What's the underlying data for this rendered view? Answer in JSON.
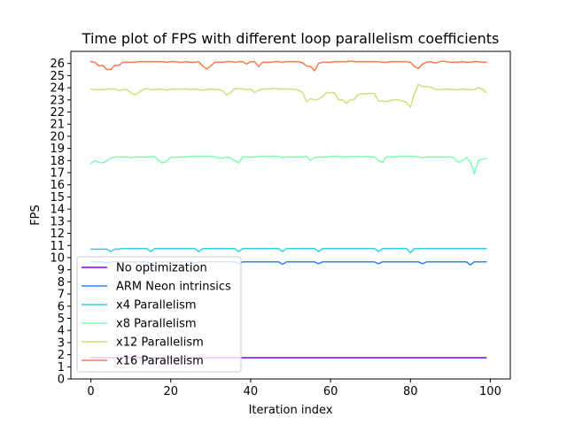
{
  "chart_data": {
    "type": "line",
    "title": "Time plot of FPS with different loop parallelism coefficients",
    "xlabel": "Iteration index",
    "ylabel": "FPS",
    "xlim": [
      -5,
      105
    ],
    "ylim": [
      0,
      27
    ],
    "x_ticks": [
      0,
      20,
      40,
      60,
      80,
      100
    ],
    "y_ticks": [
      0,
      1,
      2,
      3,
      4,
      5,
      6,
      7,
      8,
      9,
      10,
      11,
      12,
      13,
      14,
      15,
      16,
      17,
      18,
      19,
      20,
      21,
      22,
      23,
      24,
      25,
      26
    ],
    "grid": false,
    "legend_position": "lower-left",
    "x": [
      0,
      1,
      2,
      3,
      4,
      5,
      6,
      7,
      8,
      9,
      10,
      11,
      12,
      13,
      14,
      15,
      16,
      17,
      18,
      19,
      20,
      21,
      22,
      23,
      24,
      25,
      26,
      27,
      28,
      29,
      30,
      31,
      32,
      33,
      34,
      35,
      36,
      37,
      38,
      39,
      40,
      41,
      42,
      43,
      44,
      45,
      46,
      47,
      48,
      49,
      50,
      51,
      52,
      53,
      54,
      55,
      56,
      57,
      58,
      59,
      60,
      61,
      62,
      63,
      64,
      65,
      66,
      67,
      68,
      69,
      70,
      71,
      72,
      73,
      74,
      75,
      76,
      77,
      78,
      79,
      80,
      81,
      82,
      83,
      84,
      85,
      86,
      87,
      88,
      89,
      90,
      91,
      92,
      93,
      94,
      95,
      96,
      97,
      98,
      99
    ],
    "series": [
      {
        "name": "No optimization",
        "color": "#8000ff",
        "values": [
          1.75,
          1.75,
          1.75,
          1.75,
          1.75,
          1.75,
          1.75,
          1.75,
          1.75,
          1.75,
          1.75,
          1.75,
          1.75,
          1.75,
          1.75,
          1.75,
          1.75,
          1.75,
          1.75,
          1.75,
          1.75,
          1.75,
          1.75,
          1.75,
          1.75,
          1.75,
          1.75,
          1.75,
          1.75,
          1.75,
          1.75,
          1.75,
          1.75,
          1.75,
          1.75,
          1.75,
          1.75,
          1.75,
          1.75,
          1.75,
          1.75,
          1.75,
          1.75,
          1.75,
          1.75,
          1.75,
          1.75,
          1.75,
          1.75,
          1.75,
          1.75,
          1.75,
          1.75,
          1.75,
          1.75,
          1.75,
          1.75,
          1.75,
          1.75,
          1.75,
          1.75,
          1.75,
          1.75,
          1.75,
          1.75,
          1.75,
          1.75,
          1.75,
          1.75,
          1.75,
          1.75,
          1.75,
          1.75,
          1.75,
          1.75,
          1.75,
          1.75,
          1.75,
          1.75,
          1.75,
          1.75,
          1.75,
          1.75,
          1.75,
          1.75,
          1.75,
          1.75,
          1.75,
          1.75,
          1.75,
          1.75,
          1.75,
          1.75,
          1.75,
          1.75,
          1.75,
          1.75,
          1.75,
          1.75,
          1.75
        ]
      },
      {
        "name": "ARM Neon intrinsics",
        "color": "#3080f0",
        "values": [
          9.65,
          9.65,
          9.65,
          9.65,
          9.55,
          9.65,
          9.65,
          9.65,
          9.65,
          9.65,
          9.65,
          9.65,
          9.65,
          9.65,
          9.65,
          9.5,
          9.65,
          9.65,
          9.65,
          9.65,
          9.65,
          9.65,
          9.65,
          9.65,
          9.65,
          9.65,
          9.55,
          9.65,
          9.65,
          9.65,
          9.65,
          9.65,
          9.65,
          9.65,
          9.65,
          9.65,
          9.65,
          9.5,
          9.65,
          9.65,
          9.65,
          9.65,
          9.65,
          9.65,
          9.65,
          9.65,
          9.65,
          9.65,
          9.45,
          9.65,
          9.65,
          9.65,
          9.65,
          9.65,
          9.65,
          9.65,
          9.65,
          9.5,
          9.65,
          9.65,
          9.65,
          9.65,
          9.65,
          9.65,
          9.65,
          9.65,
          9.65,
          9.65,
          9.65,
          9.65,
          9.65,
          9.65,
          9.5,
          9.65,
          9.65,
          9.65,
          9.65,
          9.65,
          9.65,
          9.65,
          9.65,
          9.65,
          9.65,
          9.5,
          9.65,
          9.65,
          9.65,
          9.65,
          9.65,
          9.65,
          9.65,
          9.65,
          9.65,
          9.65,
          9.65,
          9.4,
          9.65,
          9.65,
          9.65,
          9.65
        ]
      },
      {
        "name": "x4 Parallelism",
        "color": "#30d4e0",
        "values": [
          10.7,
          10.7,
          10.7,
          10.7,
          10.7,
          10.5,
          10.7,
          10.7,
          10.75,
          10.75,
          10.75,
          10.75,
          10.75,
          10.75,
          10.75,
          10.5,
          10.75,
          10.75,
          10.75,
          10.75,
          10.75,
          10.75,
          10.75,
          10.75,
          10.75,
          10.75,
          10.75,
          10.5,
          10.75,
          10.75,
          10.75,
          10.75,
          10.75,
          10.75,
          10.75,
          10.75,
          10.75,
          10.5,
          10.75,
          10.75,
          10.75,
          10.75,
          10.75,
          10.75,
          10.75,
          10.75,
          10.75,
          10.75,
          10.5,
          10.75,
          10.75,
          10.75,
          10.75,
          10.75,
          10.75,
          10.75,
          10.75,
          10.5,
          10.75,
          10.75,
          10.75,
          10.75,
          10.75,
          10.75,
          10.75,
          10.75,
          10.75,
          10.75,
          10.75,
          10.75,
          10.75,
          10.75,
          10.5,
          10.75,
          10.75,
          10.75,
          10.75,
          10.75,
          10.75,
          10.75,
          10.4,
          10.75,
          10.75,
          10.75,
          10.75,
          10.75,
          10.75,
          10.75,
          10.75,
          10.75,
          10.75,
          10.75,
          10.75,
          10.75,
          10.75,
          10.75,
          10.75,
          10.75,
          10.75,
          10.75
        ]
      },
      {
        "name": "x8 Parallelism",
        "color": "#80ffb4",
        "values": [
          17.75,
          18.0,
          17.85,
          17.8,
          18.0,
          18.2,
          18.3,
          18.3,
          18.3,
          18.3,
          18.25,
          18.3,
          18.3,
          18.3,
          18.3,
          18.3,
          18.35,
          18.0,
          17.8,
          17.95,
          18.3,
          18.25,
          18.3,
          18.3,
          18.3,
          18.35,
          18.35,
          18.35,
          18.35,
          18.35,
          18.35,
          18.3,
          18.2,
          18.2,
          18.3,
          18.2,
          18.0,
          17.8,
          18.3,
          18.3,
          18.3,
          18.3,
          18.35,
          18.35,
          18.35,
          18.35,
          18.35,
          18.35,
          18.25,
          18.3,
          18.3,
          18.3,
          18.3,
          18.3,
          18.35,
          18.0,
          18.25,
          18.3,
          18.3,
          18.3,
          18.35,
          18.35,
          18.35,
          18.3,
          18.3,
          18.35,
          18.3,
          18.35,
          18.3,
          18.35,
          18.3,
          18.3,
          18.0,
          17.85,
          18.3,
          18.3,
          18.3,
          18.35,
          18.35,
          18.35,
          18.35,
          18.35,
          18.3,
          18.25,
          18.3,
          18.3,
          18.3,
          18.3,
          18.3,
          18.3,
          18.3,
          18.2,
          17.85,
          18.0,
          18.25,
          17.9,
          16.9,
          18.0,
          18.1,
          18.2
        ]
      },
      {
        "name": "x12 Parallelism",
        "color": "#d4dc7f",
        "values": [
          23.9,
          23.85,
          23.85,
          23.85,
          23.9,
          23.9,
          23.9,
          23.75,
          23.85,
          23.85,
          23.6,
          23.4,
          23.6,
          23.85,
          23.95,
          23.85,
          23.85,
          23.9,
          23.85,
          23.8,
          23.9,
          23.85,
          23.9,
          23.9,
          23.9,
          23.85,
          23.9,
          23.85,
          23.8,
          23.85,
          23.9,
          23.85,
          23.85,
          23.75,
          23.4,
          23.6,
          23.95,
          23.9,
          23.9,
          23.85,
          23.9,
          23.6,
          23.8,
          23.9,
          23.9,
          23.9,
          23.95,
          23.9,
          23.9,
          23.9,
          23.9,
          23.85,
          23.8,
          23.6,
          22.85,
          23.1,
          23.0,
          23.05,
          23.3,
          23.6,
          23.6,
          23.6,
          23.0,
          23.0,
          22.7,
          23.0,
          23.05,
          23.45,
          23.5,
          23.5,
          23.55,
          23.5,
          22.9,
          22.9,
          22.85,
          22.95,
          23.0,
          23.0,
          22.9,
          22.8,
          22.4,
          23.5,
          24.3,
          24.1,
          24.1,
          24.05,
          23.9,
          23.85,
          23.85,
          23.9,
          23.85,
          23.85,
          23.85,
          23.9,
          23.85,
          23.85,
          23.85,
          24.0,
          23.9,
          23.6
        ]
      },
      {
        "name": "x16 Parallelism",
        "color": "#ff7a4a",
        "values": [
          26.15,
          26.1,
          25.8,
          25.85,
          25.5,
          25.5,
          25.85,
          25.85,
          26.1,
          26.1,
          26.1,
          26.1,
          26.15,
          26.15,
          26.15,
          26.15,
          26.15,
          26.15,
          26.15,
          26.1,
          26.15,
          26.15,
          26.1,
          26.1,
          26.15,
          26.1,
          26.1,
          26.15,
          25.8,
          25.55,
          25.8,
          26.1,
          26.1,
          26.1,
          26.15,
          26.15,
          26.1,
          26.15,
          26.15,
          25.95,
          26.15,
          26.15,
          25.75,
          26.1,
          26.1,
          26.1,
          26.15,
          26.15,
          26.1,
          26.15,
          26.15,
          26.15,
          26.15,
          26.05,
          25.8,
          25.75,
          25.4,
          26.0,
          26.1,
          26.1,
          26.1,
          26.15,
          26.15,
          26.15,
          26.15,
          26.2,
          26.15,
          26.15,
          26.15,
          26.15,
          26.15,
          26.15,
          26.15,
          26.1,
          26.1,
          26.15,
          26.15,
          26.15,
          26.15,
          26.15,
          26.1,
          25.75,
          25.6,
          25.95,
          26.1,
          26.15,
          26.05,
          26.1,
          26.2,
          26.15,
          26.1,
          26.1,
          26.1,
          26.15,
          26.1,
          26.1,
          26.15,
          26.15,
          26.1,
          26.1
        ]
      }
    ]
  }
}
